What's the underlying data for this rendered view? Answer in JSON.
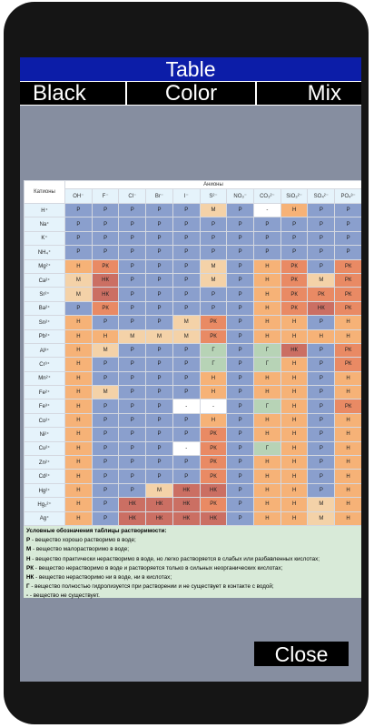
{
  "header": {
    "title": "Table"
  },
  "modes": {
    "black": "Black",
    "color": "Color",
    "mix": "Mix"
  },
  "close_label": "Close",
  "table": {
    "cation_header": "Катионы",
    "anion_header": "Анионы",
    "anions": [
      "OH⁻",
      "F⁻",
      "Cl⁻",
      "Br⁻",
      "I⁻",
      "S²⁻",
      "NO₃⁻",
      "CO₃²⁻",
      "SiO₃²⁻",
      "SO₄²⁻",
      "PO₄³⁻"
    ],
    "rows": [
      {
        "cation": "H⁺",
        "cells": [
          "Р",
          "Р",
          "Р",
          "Р",
          "Р",
          "М",
          "Р",
          "-",
          "Н",
          "Р",
          "Р"
        ]
      },
      {
        "cation": "Na⁺",
        "cells": [
          "Р",
          "Р",
          "Р",
          "Р",
          "Р",
          "Р",
          "Р",
          "Р",
          "Р",
          "Р",
          "Р"
        ]
      },
      {
        "cation": "K⁺",
        "cells": [
          "Р",
          "Р",
          "Р",
          "Р",
          "Р",
          "Р",
          "Р",
          "Р",
          "Р",
          "Р",
          "Р"
        ]
      },
      {
        "cation": "NH₄⁺",
        "cells": [
          "Р",
          "Р",
          "Р",
          "Р",
          "Р",
          "Р",
          "Р",
          "Р",
          "Р",
          "Р",
          "Р"
        ]
      },
      {
        "cation": "Mg²⁺",
        "cells": [
          "Н",
          "РК",
          "Р",
          "Р",
          "Р",
          "М",
          "Р",
          "Н",
          "РК",
          "Р",
          "РК"
        ]
      },
      {
        "cation": "Ca²⁺",
        "cells": [
          "М",
          "НК",
          "Р",
          "Р",
          "Р",
          "М",
          "Р",
          "Н",
          "РК",
          "М",
          "РК"
        ]
      },
      {
        "cation": "Sr²⁺",
        "cells": [
          "М",
          "НК",
          "Р",
          "Р",
          "Р",
          "Р",
          "Р",
          "Н",
          "РК",
          "РК",
          "РК"
        ]
      },
      {
        "cation": "Ba²⁺",
        "cells": [
          "Р",
          "РК",
          "Р",
          "Р",
          "Р",
          "Р",
          "Р",
          "Н",
          "РК",
          "НК",
          "РК"
        ]
      },
      {
        "cation": "Sn²⁺",
        "cells": [
          "Н",
          "Р",
          "Р",
          "Р",
          "М",
          "РК",
          "Р",
          "Н",
          "Н",
          "Р",
          "Н"
        ]
      },
      {
        "cation": "Pb²⁺",
        "cells": [
          "Н",
          "Н",
          "М",
          "М",
          "М",
          "РК",
          "Р",
          "Н",
          "Н",
          "Н",
          "Н"
        ]
      },
      {
        "cation": "Al³⁺",
        "cells": [
          "Н",
          "М",
          "Р",
          "Р",
          "Р",
          "Г",
          "Р",
          "Г",
          "НК",
          "Р",
          "РК"
        ]
      },
      {
        "cation": "Cr³⁺",
        "cells": [
          "Н",
          "Р",
          "Р",
          "Р",
          "Р",
          "Г",
          "Р",
          "Г",
          "Н",
          "Р",
          "РК"
        ]
      },
      {
        "cation": "Mn²⁺",
        "cells": [
          "Н",
          "Р",
          "Р",
          "Р",
          "Р",
          "Н",
          "Р",
          "Н",
          "Н",
          "Р",
          "Н"
        ]
      },
      {
        "cation": "Fe²⁺",
        "cells": [
          "Н",
          "М",
          "Р",
          "Р",
          "Р",
          "Н",
          "Р",
          "Н",
          "Н",
          "Р",
          "Н"
        ]
      },
      {
        "cation": "Fe³⁺",
        "cells": [
          "Н",
          "Р",
          "Р",
          "Р",
          "-",
          "-",
          "Р",
          "Г",
          "Н",
          "Р",
          "РК"
        ]
      },
      {
        "cation": "Co²⁺",
        "cells": [
          "Н",
          "Р",
          "Р",
          "Р",
          "Р",
          "Н",
          "Р",
          "Н",
          "Н",
          "Р",
          "Н"
        ]
      },
      {
        "cation": "Ni²⁺",
        "cells": [
          "Н",
          "Р",
          "Р",
          "Р",
          "Р",
          "РК",
          "Р",
          "Н",
          "Н",
          "Р",
          "Н"
        ]
      },
      {
        "cation": "Cu²⁺",
        "cells": [
          "Н",
          "Р",
          "Р",
          "Р",
          "-",
          "РК",
          "Р",
          "Г",
          "Н",
          "Р",
          "Н"
        ]
      },
      {
        "cation": "Zn²⁺",
        "cells": [
          "Н",
          "Р",
          "Р",
          "Р",
          "Р",
          "РК",
          "Р",
          "Н",
          "Н",
          "Р",
          "Н"
        ]
      },
      {
        "cation": "Cd²⁺",
        "cells": [
          "Н",
          "Р",
          "Р",
          "Р",
          "Р",
          "РК",
          "Р",
          "Н",
          "Н",
          "Р",
          "Н"
        ]
      },
      {
        "cation": "Hg²⁺",
        "cells": [
          "Н",
          "Р",
          "Р",
          "М",
          "НК",
          "НК",
          "Р",
          "Н",
          "Н",
          "Р",
          "Н"
        ]
      },
      {
        "cation": "Hg₂²⁺",
        "cells": [
          "Н",
          "Р",
          "НК",
          "НК",
          "НК",
          "РК",
          "Р",
          "Н",
          "Н",
          "М",
          "Н"
        ]
      },
      {
        "cation": "Ag⁺",
        "cells": [
          "Н",
          "Р",
          "НК",
          "НК",
          "НК",
          "НК",
          "Р",
          "Н",
          "Н",
          "М",
          "Н"
        ]
      }
    ]
  },
  "legend": {
    "title": "Условные обозначения таблицы растворимости:",
    "items": [
      {
        "key": "Р",
        "text": " - вещество хорошо растворимо в воде;"
      },
      {
        "key": "М",
        "text": " - вещество малорастворимо в воде;"
      },
      {
        "key": "Н",
        "text": " - вещество практически нерастворимо в воде, но легко растворяется в слабых или разбавленных кислотах;"
      },
      {
        "key": "РК",
        "text": " - вещество нерастворимо в воде и растворяется только в сильных неорганических кислотах;"
      },
      {
        "key": "НК",
        "text": " - вещество нерастворимо ни в воде, ни в кислотах;"
      },
      {
        "key": "Г",
        "text": " - вещество полностью гидролизуется при растворении и не существует в контакте с водой;"
      },
      {
        "key": "-",
        "text": " - вещество не существует."
      }
    ]
  },
  "colors": {
    "Р": "#8a9fcd",
    "М": "#f4d2a8",
    "Н": "#f6b277",
    "РК": "#e98a64",
    "НК": "#cb6f63",
    "Г": "#b7d3b6",
    "-": "#ffffff"
  }
}
